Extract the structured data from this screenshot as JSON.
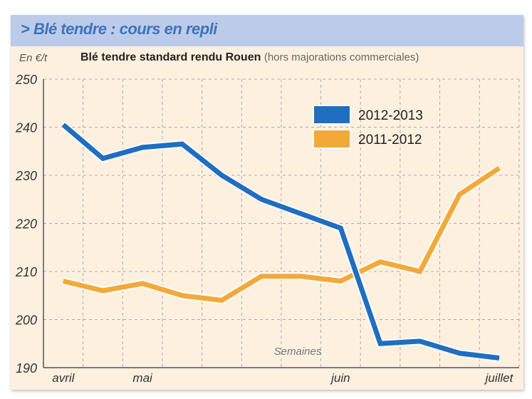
{
  "header": {
    "title": "> Blé tendre : cours en repli"
  },
  "chart_data": {
    "type": "line",
    "title": "Blé tendre standard rendu Rouen",
    "subtitle_note": "(hors majorations commerciales)",
    "ylabel": "En €/t",
    "xlabel": "Semaines",
    "ylim": [
      190,
      250
    ],
    "yticks": [
      190,
      200,
      210,
      220,
      230,
      240,
      250
    ],
    "grid": true,
    "legend_position": "top-right",
    "x": [
      1,
      2,
      3,
      4,
      5,
      6,
      7,
      8,
      9,
      10,
      11,
      12
    ],
    "month_labels": [
      {
        "label": "avril",
        "x": 1
      },
      {
        "label": "mai",
        "x": 3
      },
      {
        "label": "juin",
        "x": 8
      },
      {
        "label": "juillet",
        "x": 12
      }
    ],
    "series": [
      {
        "name": "2012-2013",
        "color": "#1f6ec0",
        "values": [
          240.5,
          233.5,
          235.8,
          236.5,
          230,
          225,
          222,
          219,
          195,
          195.5,
          193,
          192
        ]
      },
      {
        "name": "2011-2012",
        "color": "#f3a93a",
        "values": [
          208,
          206,
          207.5,
          205,
          204,
          209,
          209,
          208,
          212,
          210,
          226,
          231.5
        ]
      }
    ]
  }
}
